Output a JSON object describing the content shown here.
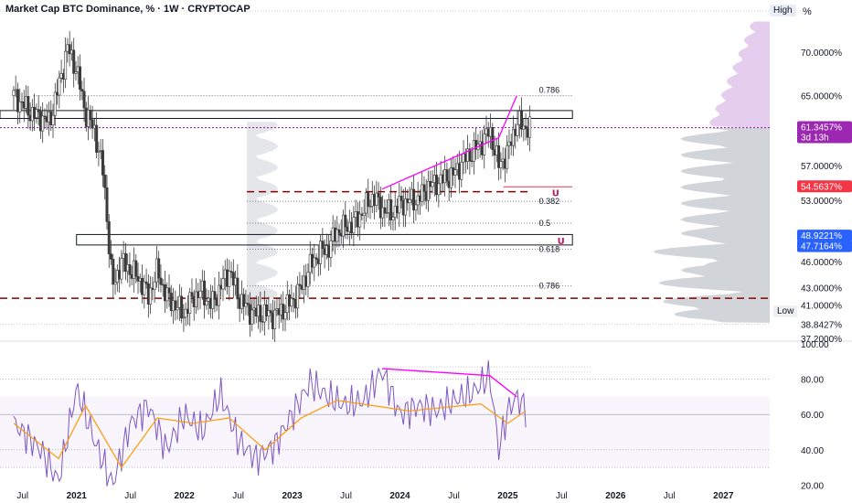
{
  "header": {
    "title": "Market Cap BTC Dominance, % · 1W · CRYPTOCAP",
    "unit": "%",
    "high_tag": "High",
    "low_tag": "Low"
  },
  "chart_data": [
    {
      "type": "candlestick",
      "title": "Market Cap BTC Dominance, % · 1W · CRYPTOCAP",
      "ylabel": "%",
      "ylim": [
        37.2,
        74.5
      ],
      "y_ticks": [
        "70.0000%",
        "65.0000%",
        "57.0000%",
        "53.0000%",
        "46.0000%",
        "43.0000%",
        "41.0000%",
        "37.2000%"
      ],
      "x_ticks": [
        "Jul",
        "2021",
        "Jul",
        "2022",
        "Jul",
        "2023",
        "Jul",
        "2024",
        "Jul",
        "2025",
        "Jul",
        "2026",
        "Jul",
        "2027"
      ],
      "close_series": [
        {
          "x": "2020-06",
          "y": 65.0
        },
        {
          "x": "2020-08",
          "y": 63.0
        },
        {
          "x": "2020-10",
          "y": 62.0
        },
        {
          "x": "2020-11",
          "y": 66.0
        },
        {
          "x": "2020-12",
          "y": 70.5
        },
        {
          "x": "2021-01",
          "y": 68.0
        },
        {
          "x": "2021-02",
          "y": 63.0
        },
        {
          "x": "2021-03",
          "y": 61.0
        },
        {
          "x": "2021-04",
          "y": 56.0
        },
        {
          "x": "2021-05",
          "y": 43.0
        },
        {
          "x": "2021-06",
          "y": 46.0
        },
        {
          "x": "2021-07",
          "y": 45.0
        },
        {
          "x": "2021-08",
          "y": 44.0
        },
        {
          "x": "2021-09",
          "y": 42.0
        },
        {
          "x": "2021-10",
          "y": 45.0
        },
        {
          "x": "2021-11",
          "y": 42.0
        },
        {
          "x": "2021-12",
          "y": 41.0
        },
        {
          "x": "2022-01",
          "y": 40.0
        },
        {
          "x": "2022-02",
          "y": 42.0
        },
        {
          "x": "2022-03",
          "y": 42.5
        },
        {
          "x": "2022-04",
          "y": 41.0
        },
        {
          "x": "2022-05",
          "y": 43.0
        },
        {
          "x": "2022-06",
          "y": 45.0
        },
        {
          "x": "2022-07",
          "y": 42.0
        },
        {
          "x": "2022-08",
          "y": 40.5
        },
        {
          "x": "2022-09",
          "y": 40.0
        },
        {
          "x": "2022-10",
          "y": 40.0
        },
        {
          "x": "2022-11",
          "y": 39.8
        },
        {
          "x": "2022-12",
          "y": 40.5
        },
        {
          "x": "2023-01",
          "y": 41.5
        },
        {
          "x": "2023-02",
          "y": 43.0
        },
        {
          "x": "2023-03",
          "y": 45.5
        },
        {
          "x": "2023-04",
          "y": 47.0
        },
        {
          "x": "2023-05",
          "y": 47.5
        },
        {
          "x": "2023-06",
          "y": 49.5
        },
        {
          "x": "2023-07",
          "y": 50.0
        },
        {
          "x": "2023-08",
          "y": 50.5
        },
        {
          "x": "2023-09",
          "y": 52.0
        },
        {
          "x": "2023-10",
          "y": 53.5
        },
        {
          "x": "2023-11",
          "y": 52.0
        },
        {
          "x": "2023-12",
          "y": 51.5
        },
        {
          "x": "2024-01",
          "y": 52.5
        },
        {
          "x": "2024-02",
          "y": 53.0
        },
        {
          "x": "2024-03",
          "y": 53.0
        },
        {
          "x": "2024-04",
          "y": 54.5
        },
        {
          "x": "2024-05",
          "y": 55.0
        },
        {
          "x": "2024-06",
          "y": 55.5
        },
        {
          "x": "2024-07",
          "y": 56.0
        },
        {
          "x": "2024-08",
          "y": 57.5
        },
        {
          "x": "2024-09",
          "y": 58.5
        },
        {
          "x": "2024-10",
          "y": 59.5
        },
        {
          "x": "2024-11",
          "y": 61.0
        },
        {
          "x": "2024-12",
          "y": 57.0
        },
        {
          "x": "2025-01",
          "y": 58.5
        },
        {
          "x": "2025-02",
          "y": 62.0
        },
        {
          "x": "2025-03",
          "y": 61.35
        }
      ],
      "price_tags": [
        {
          "value": "61.3457%",
          "sub": "3d 13h",
          "bg": "#9c27b0",
          "color": "#ffffff"
        },
        {
          "value": "54.5637%",
          "bg": "#f23645",
          "color": "#ffffff"
        },
        {
          "value": "48.9221%",
          "bg": "#2962ff",
          "color": "#ffffff"
        },
        {
          "value": "47.7164%",
          "bg": "#2962ff",
          "color": "#ffffff"
        },
        {
          "value": "38.8427%",
          "bg": "#eef0f4",
          "color": "#131722"
        }
      ],
      "fib_labels": [
        {
          "label": "0.786",
          "level": 65.0
        },
        {
          "label": "0.382",
          "level": 52.9
        },
        {
          "label": "0.5",
          "level": 50.4
        },
        {
          "label": "0.618",
          "level": 47.4
        },
        {
          "label": "0.786",
          "level": 43.2
        }
      ],
      "horizontal_zones": [
        [
          63.3,
          62.4
        ],
        [
          49.1,
          47.9
        ]
      ],
      "dashed_levels": [
        54.0,
        41.8
      ],
      "trendline": [
        {
          "x": "2023-11",
          "y": 54.3
        },
        {
          "x": "2024-12",
          "y": 60.2
        },
        {
          "x": "2025-02",
          "y": 65.0
        }
      ],
      "colors": {
        "candle": "#3a3a3a",
        "trend": "#ff00ff",
        "dashed": "#8b0000",
        "purple_level": "#9c27b0"
      }
    },
    {
      "type": "line",
      "ylim": [
        15,
        100
      ],
      "y_ticks": [
        "100.00",
        "80.00",
        "60.00",
        "40.00",
        "20.00"
      ],
      "series": [
        {
          "x": "2020-06",
          "y": 55
        },
        {
          "x": "2020-09",
          "y": 40
        },
        {
          "x": "2020-11",
          "y": 22
        },
        {
          "x": "2021-01",
          "y": 75
        },
        {
          "x": "2021-03",
          "y": 45
        },
        {
          "x": "2021-05",
          "y": 20
        },
        {
          "x": "2021-07",
          "y": 55
        },
        {
          "x": "2021-09",
          "y": 65
        },
        {
          "x": "2021-11",
          "y": 40
        },
        {
          "x": "2022-01",
          "y": 60
        },
        {
          "x": "2022-03",
          "y": 50
        },
        {
          "x": "2022-05",
          "y": 72
        },
        {
          "x": "2022-07",
          "y": 45
        },
        {
          "x": "2022-09",
          "y": 35
        },
        {
          "x": "2022-11",
          "y": 42
        },
        {
          "x": "2023-01",
          "y": 60
        },
        {
          "x": "2023-03",
          "y": 78
        },
        {
          "x": "2023-05",
          "y": 70
        },
        {
          "x": "2023-07",
          "y": 65
        },
        {
          "x": "2023-09",
          "y": 68
        },
        {
          "x": "2023-11",
          "y": 85
        },
        {
          "x": "2024-01",
          "y": 60
        },
        {
          "x": "2024-03",
          "y": 65
        },
        {
          "x": "2024-05",
          "y": 62
        },
        {
          "x": "2024-07",
          "y": 68
        },
        {
          "x": "2024-09",
          "y": 72
        },
        {
          "x": "2024-11",
          "y": 82
        },
        {
          "x": "2024-12",
          "y": 40
        },
        {
          "x": "2025-01",
          "y": 62
        },
        {
          "x": "2025-02",
          "y": 70
        },
        {
          "x": "2025-03",
          "y": 63
        }
      ],
      "signal": [
        {
          "x": "2020-06",
          "y": 55
        },
        {
          "x": "2020-11",
          "y": 35
        },
        {
          "x": "2021-02",
          "y": 65
        },
        {
          "x": "2021-06",
          "y": 30
        },
        {
          "x": "2021-10",
          "y": 58
        },
        {
          "x": "2022-02",
          "y": 55
        },
        {
          "x": "2022-06",
          "y": 58
        },
        {
          "x": "2022-10",
          "y": 40
        },
        {
          "x": "2023-02",
          "y": 58
        },
        {
          "x": "2023-06",
          "y": 68
        },
        {
          "x": "2023-10",
          "y": 65
        },
        {
          "x": "2024-02",
          "y": 62
        },
        {
          "x": "2024-06",
          "y": 64
        },
        {
          "x": "2024-10",
          "y": 66
        },
        {
          "x": "2025-01",
          "y": 55
        },
        {
          "x": "2025-03",
          "y": 62
        }
      ],
      "divergence_line": [
        {
          "x": "2023-11",
          "y": 86
        },
        {
          "x": "2024-11",
          "y": 82
        },
        {
          "x": "2025-02",
          "y": 70
        }
      ],
      "colors": {
        "rsi": "#7e57c2",
        "signal": "#ff9800",
        "divergence": "#ff00ff"
      }
    }
  ]
}
